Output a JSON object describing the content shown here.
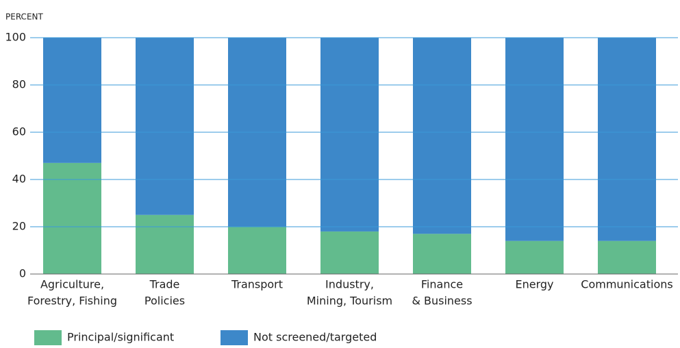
{
  "chart_data": {
    "type": "stacked_bar",
    "y_label": "PERCENT",
    "categories": [
      [
        "Agriculture,",
        "Forestry, Fishing"
      ],
      [
        "Trade",
        "Policies"
      ],
      [
        "Transport"
      ],
      [
        "Industry,",
        "Mining, Tourism"
      ],
      [
        "Finance",
        "& Business"
      ],
      [
        "Energy"
      ],
      [
        "Communications"
      ]
    ],
    "series": [
      {
        "name": "Principal/significant",
        "color": "#62bb8d",
        "values": [
          47,
          25,
          20,
          18,
          17,
          14,
          14
        ]
      },
      {
        "name": "Not screened/targeted",
        "color": "#3d88c9",
        "values": [
          53,
          75,
          80,
          82,
          83,
          86,
          86
        ]
      }
    ],
    "ylim": [
      0,
      100
    ],
    "yticks": [
      0,
      20,
      40,
      60,
      80,
      100
    ],
    "grid": true
  }
}
